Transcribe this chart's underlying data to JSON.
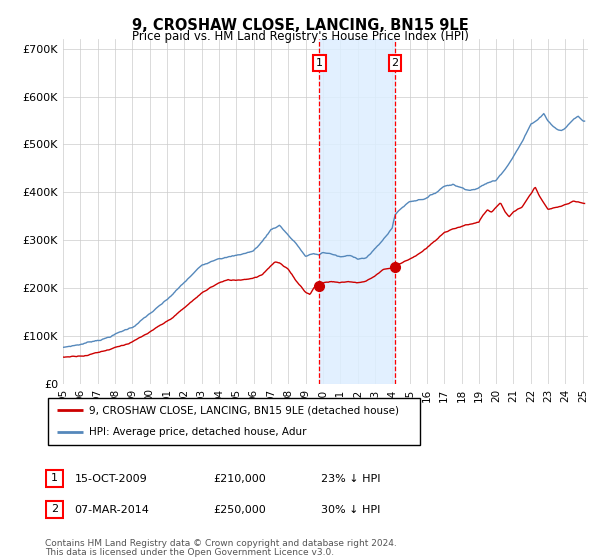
{
  "title": "9, CROSHAW CLOSE, LANCING, BN15 9LE",
  "subtitle": "Price paid vs. HM Land Registry's House Price Index (HPI)",
  "legend_label_red": "9, CROSHAW CLOSE, LANCING, BN15 9LE (detached house)",
  "legend_label_blue": "HPI: Average price, detached house, Adur",
  "transaction_1_price": 210000,
  "transaction_1_label": "15-OCT-2009",
  "transaction_1_pct": "23% ↓ HPI",
  "transaction_1_x": 2009.79,
  "transaction_2_price": 250000,
  "transaction_2_label": "07-MAR-2014",
  "transaction_2_pct": "30% ↓ HPI",
  "transaction_2_x": 2014.17,
  "footnote_line1": "Contains HM Land Registry data © Crown copyright and database right 2024.",
  "footnote_line2": "This data is licensed under the Open Government Licence v3.0.",
  "ylim_min": 0,
  "ylim_max": 720000,
  "yticks": [
    0,
    100000,
    200000,
    300000,
    400000,
    500000,
    600000,
    700000
  ],
  "ytick_labels": [
    "£0",
    "£100K",
    "£200K",
    "£300K",
    "£400K",
    "£500K",
    "£600K",
    "£700K"
  ],
  "color_red": "#cc0000",
  "color_blue": "#5588bb",
  "color_shade": "#ddeeff",
  "background_color": "#ffffff",
  "grid_color": "#cccccc",
  "xlim_min": 1995.0,
  "xlim_max": 2025.3,
  "hpi_anchors_x": [
    1995.0,
    1996.0,
    1997.0,
    1997.5,
    1998.0,
    1999.0,
    2000.0,
    2001.0,
    2002.0,
    2003.0,
    2004.0,
    2005.0,
    2006.0,
    2006.5,
    2007.0,
    2007.5,
    2008.0,
    2008.5,
    2009.0,
    2009.5,
    2009.79,
    2010.0,
    2010.5,
    2011.0,
    2011.5,
    2012.0,
    2012.5,
    2013.0,
    2013.5,
    2014.0,
    2014.17,
    2014.5,
    2015.0,
    2016.0,
    2016.5,
    2017.0,
    2017.5,
    2018.0,
    2018.5,
    2019.0,
    2019.5,
    2020.0,
    2020.5,
    2021.0,
    2021.5,
    2022.0,
    2022.5,
    2022.75,
    2023.0,
    2023.25,
    2023.5,
    2023.75,
    2024.0,
    2024.25,
    2024.5,
    2024.75,
    2025.0
  ],
  "hpi_anchors_y": [
    75000,
    82000,
    92000,
    97000,
    105000,
    120000,
    148000,
    175000,
    210000,
    245000,
    265000,
    270000,
    280000,
    300000,
    325000,
    335000,
    315000,
    295000,
    270000,
    275000,
    272000,
    278000,
    275000,
    268000,
    270000,
    265000,
    268000,
    285000,
    305000,
    330000,
    357000,
    370000,
    385000,
    395000,
    405000,
    420000,
    425000,
    418000,
    415000,
    420000,
    430000,
    435000,
    460000,
    490000,
    520000,
    555000,
    570000,
    580000,
    565000,
    555000,
    548000,
    545000,
    550000,
    560000,
    570000,
    575000,
    565000
  ],
  "red_anchors_x": [
    1995.0,
    1995.5,
    1996.0,
    1996.5,
    1997.0,
    1997.5,
    1998.0,
    1999.0,
    2000.0,
    2001.0,
    2002.0,
    2003.0,
    2003.5,
    2004.0,
    2004.5,
    2005.0,
    2005.5,
    2006.0,
    2006.5,
    2007.0,
    2007.25,
    2007.5,
    2008.0,
    2008.5,
    2009.0,
    2009.25,
    2009.5,
    2009.79,
    2010.0,
    2010.5,
    2011.0,
    2011.5,
    2012.0,
    2012.5,
    2013.0,
    2013.5,
    2014.0,
    2014.17,
    2014.5,
    2015.0,
    2015.5,
    2016.0,
    2016.5,
    2017.0,
    2017.5,
    2018.0,
    2018.5,
    2019.0,
    2019.25,
    2019.5,
    2019.75,
    2020.0,
    2020.25,
    2020.5,
    2020.75,
    2021.0,
    2021.5,
    2022.0,
    2022.25,
    2022.5,
    2022.75,
    2023.0,
    2023.5,
    2024.0,
    2024.5,
    2025.0
  ],
  "red_anchors_y": [
    55000,
    57000,
    60000,
    63000,
    68000,
    73000,
    80000,
    92000,
    110000,
    130000,
    158000,
    188000,
    200000,
    210000,
    215000,
    215000,
    218000,
    222000,
    230000,
    250000,
    258000,
    255000,
    240000,
    215000,
    195000,
    190000,
    205000,
    210000,
    215000,
    218000,
    215000,
    218000,
    215000,
    220000,
    230000,
    245000,
    248000,
    250000,
    258000,
    268000,
    278000,
    290000,
    305000,
    320000,
    330000,
    335000,
    340000,
    345000,
    360000,
    370000,
    365000,
    375000,
    385000,
    365000,
    355000,
    365000,
    375000,
    400000,
    415000,
    395000,
    380000,
    365000,
    370000,
    375000,
    380000,
    375000
  ]
}
